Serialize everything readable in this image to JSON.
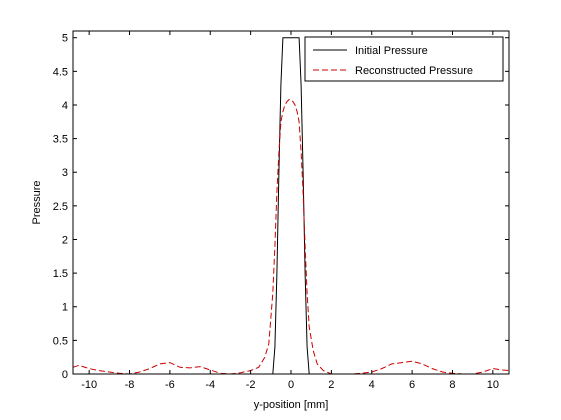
{
  "chart_data": {
    "type": "line",
    "title": "",
    "xlabel": "y-position [mm]",
    "ylabel": "Pressure",
    "xlim": [
      -10.8,
      10.8
    ],
    "ylim": [
      0,
      5.1
    ],
    "xticks": [
      -10,
      -8,
      -6,
      -4,
      -2,
      0,
      2,
      4,
      6,
      8,
      10
    ],
    "xtick_labels": [
      "-10",
      "-8",
      "-6",
      "-4",
      "-2",
      "0",
      "2",
      "4",
      "6",
      "8",
      "10"
    ],
    "yticks": [
      0,
      0.5,
      1,
      1.5,
      2,
      2.5,
      3,
      3.5,
      4,
      4.5,
      5
    ],
    "ytick_labels": [
      "0",
      "0.5",
      "1",
      "1.5",
      "2",
      "2.5",
      "3",
      "3.5",
      "4",
      "4.5",
      "5"
    ],
    "grid": false,
    "legend_position": "top-right",
    "series": [
      {
        "name": "Initial Pressure",
        "color": "#000000",
        "dash": "solid",
        "x": [
          -10.8,
          -0.9,
          -0.8,
          -0.7,
          -0.6,
          -0.5,
          -0.4,
          0.4,
          0.5,
          0.6,
          0.7,
          0.8,
          0.9,
          10.8
        ],
        "y": [
          0,
          0,
          0.4,
          1.5,
          3.0,
          4.3,
          5.0,
          5.0,
          4.3,
          3.0,
          1.5,
          0.4,
          0,
          0
        ]
      },
      {
        "name": "Reconstructed Pressure",
        "color": "#cc0000",
        "dash": "dashed",
        "x": [
          -10.8,
          -10.5,
          -10,
          -9.5,
          -9,
          -8.5,
          -8,
          -7.5,
          -7,
          -6.5,
          -6,
          -5.5,
          -5,
          -4.5,
          -4,
          -3.5,
          -3,
          -2.5,
          -2,
          -1.6,
          -1.3,
          -1.1,
          -0.9,
          -0.8,
          -0.7,
          -0.6,
          -0.5,
          -0.4,
          -0.3,
          -0.2,
          -0.1,
          0,
          0.1,
          0.2,
          0.3,
          0.4,
          0.5,
          0.6,
          0.7,
          0.8,
          0.9,
          1.1,
          1.3,
          1.6,
          2,
          2.5,
          3,
          3.5,
          4,
          4.5,
          5,
          5.5,
          6,
          6.5,
          7,
          7.5,
          8,
          8.5,
          9,
          9.5,
          10,
          10.5,
          10.8
        ],
        "y": [
          0.1,
          0.13,
          0.08,
          0.05,
          0.03,
          0.01,
          0.0,
          0.03,
          0.08,
          0.15,
          0.17,
          0.1,
          0.09,
          0.11,
          0.06,
          0.01,
          0.0,
          0.02,
          0.05,
          0.1,
          0.25,
          0.45,
          1.2,
          1.9,
          2.7,
          3.3,
          3.75,
          3.9,
          4.0,
          4.05,
          4.08,
          4.08,
          4.05,
          4.0,
          3.9,
          3.75,
          3.3,
          2.7,
          1.9,
          1.2,
          0.7,
          0.35,
          0.15,
          0.05,
          0.0,
          0.0,
          0.0,
          0.01,
          0.03,
          0.08,
          0.15,
          0.17,
          0.19,
          0.15,
          0.08,
          0.03,
          0.01,
          0.0,
          0.0,
          0.03,
          0.08,
          0.06,
          0.05
        ]
      }
    ]
  }
}
